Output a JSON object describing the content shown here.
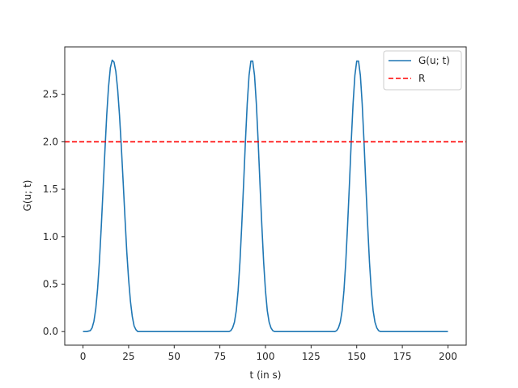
{
  "chart_data": {
    "type": "line",
    "title": "",
    "xlabel": "t (in s)",
    "ylabel": "G(u; t)",
    "xlim": [
      -10,
      210
    ],
    "ylim": [
      -0.143,
      3.0
    ],
    "xticks": [
      0,
      25,
      50,
      75,
      100,
      125,
      150,
      175,
      200
    ],
    "yticks": [
      0.0,
      0.5,
      1.0,
      1.5,
      2.0,
      2.5
    ],
    "xtick_labels": [
      "0",
      "25",
      "50",
      "75",
      "100",
      "125",
      "150",
      "175",
      "200"
    ],
    "ytick_labels": [
      "0.0",
      "0.5",
      "1.0",
      "1.5",
      "2.0",
      "2.5"
    ],
    "grid": false,
    "legend": "top-right",
    "series": [
      {
        "name": "G(u; t)",
        "color": "#1f77b4",
        "style": "solid",
        "x": [
          0,
          2,
          4,
          5,
          6,
          7,
          8,
          9,
          10,
          11,
          12,
          13,
          14,
          15,
          16,
          17,
          18,
          19,
          20,
          21,
          22,
          23,
          24,
          25,
          26,
          27,
          28,
          29,
          30,
          40,
          50,
          60,
          70,
          80,
          81,
          82,
          83,
          84,
          85,
          86,
          87,
          88,
          89,
          90,
          91,
          92,
          93,
          94,
          95,
          96,
          97,
          98,
          99,
          100,
          101,
          102,
          103,
          104,
          105,
          106,
          110,
          120,
          130,
          138,
          139,
          140,
          141,
          142,
          143,
          144,
          145,
          146,
          147,
          148,
          149,
          150,
          151,
          152,
          153,
          154,
          155,
          156,
          157,
          158,
          159,
          160,
          161,
          162,
          163,
          164,
          170,
          180,
          190,
          200
        ],
        "y": [
          0,
          0,
          0.01,
          0.04,
          0.11,
          0.24,
          0.45,
          0.74,
          1.1,
          1.5,
          1.9,
          2.28,
          2.58,
          2.78,
          2.86,
          2.84,
          2.74,
          2.55,
          2.28,
          1.95,
          1.58,
          1.2,
          0.84,
          0.55,
          0.32,
          0.16,
          0.06,
          0.02,
          0,
          0,
          0,
          0,
          0,
          0,
          0.01,
          0.04,
          0.1,
          0.22,
          0.43,
          0.73,
          1.12,
          1.55,
          2.0,
          2.4,
          2.7,
          2.85,
          2.85,
          2.7,
          2.4,
          2.0,
          1.55,
          1.12,
          0.73,
          0.43,
          0.22,
          0.1,
          0.04,
          0.01,
          0,
          0,
          0,
          0,
          0,
          0,
          0.01,
          0.04,
          0.1,
          0.22,
          0.43,
          0.73,
          1.12,
          1.55,
          2.0,
          2.4,
          2.7,
          2.85,
          2.85,
          2.7,
          2.4,
          2.0,
          1.55,
          1.12,
          0.73,
          0.43,
          0.22,
          0.1,
          0.04,
          0.01,
          0,
          0,
          0,
          0,
          0,
          0
        ]
      },
      {
        "name": "R",
        "color": "#ff0000",
        "style": "dashed",
        "x": [
          -10,
          210
        ],
        "y": [
          2.0,
          2.0
        ]
      }
    ]
  }
}
